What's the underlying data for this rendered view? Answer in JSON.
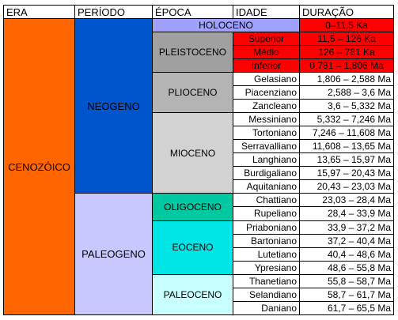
{
  "headers": {
    "era": "ERA",
    "periodo": "PERÍODO",
    "epoca": "ÉPOCA",
    "idade": "IDADE",
    "duracao": "DURAÇÃO"
  },
  "era": {
    "name": "CENOZÓICO",
    "color": "#FF6600"
  },
  "periods": [
    {
      "name": "NEOGENO",
      "color": "#0055CC"
    },
    {
      "name": "PALEOGENO",
      "color": "#C8C8FF"
    }
  ],
  "epochs": {
    "holoceno": {
      "name": "HOLOCENO",
      "color": "#A0A0FF",
      "duration": "0–11,5 Ka",
      "duration_color": "#FF0000"
    },
    "pleistoceno": {
      "name": "PLEISTOCENO",
      "color": "#A0A0A0"
    },
    "plioceno": {
      "name": "PLIOCENO",
      "color": "#B4B4B4"
    },
    "mioceno": {
      "name": "MIOCENO",
      "color": "#D2D2D2"
    },
    "oligoceno": {
      "name": "OLIGOCENO",
      "color": "#00C8A0"
    },
    "eoceno": {
      "name": "EOCENO",
      "color": "#00E6E6"
    },
    "paleoceno": {
      "name": "PALEOCENO",
      "color": "#C8FFFF"
    }
  },
  "pleistocene_ages": [
    {
      "name": "Superior",
      "duration": "11,5 – 126 Ka",
      "color": "#FF0000"
    },
    {
      "name": "Médio",
      "duration": "126 – 781 Ka",
      "color": "#FF0000"
    },
    {
      "name": "Inferior",
      "duration": "0,781 – 1,806 Ma",
      "color": "#FF0000"
    }
  ],
  "ages": [
    {
      "name": "Gelasiano",
      "duration": "1,806 – 2,588 Ma"
    },
    {
      "name": "Piacenziano",
      "duration": "2,588 – 3,6 Ma"
    },
    {
      "name": "Zancleano",
      "duration": "3,6 – 5,332 Ma"
    },
    {
      "name": "Messiniano",
      "duration": "5,332 – 7,246 Ma"
    },
    {
      "name": "Tortoniano",
      "duration": "7,246 – 11,608 Ma"
    },
    {
      "name": "Serravalliano",
      "duration": "11,608 – 13,65 Ma"
    },
    {
      "name": "Langhiano",
      "duration": "13,65 – 15,97 Ma"
    },
    {
      "name": "Burdigaliano",
      "duration": "15,97 – 20,43 Ma"
    },
    {
      "name": "Aquitaniano",
      "duration": "20,43 – 23,03 Ma"
    },
    {
      "name": "Chattiano",
      "duration": "23,03 – 28,4 Ma"
    },
    {
      "name": "Rupeliano",
      "duration": "28,4 – 33,9 Ma"
    },
    {
      "name": "Priaboniano",
      "duration": "33,9 – 37,2 Ma"
    },
    {
      "name": "Bartoniano",
      "duration": "37,2 – 40,4 Ma"
    },
    {
      "name": "Lutetiano",
      "duration": "40,4 – 48,6 Ma"
    },
    {
      "name": "Ypresiano",
      "duration": "48,6 – 55,8 Ma"
    },
    {
      "name": "Thanetiano",
      "duration": "55,8 – 58,7 Ma"
    },
    {
      "name": "Selandiano",
      "duration": "58,7 – 61,7 Ma"
    },
    {
      "name": "Daniano",
      "duration": "61,7 – 65,5 Ma"
    }
  ]
}
